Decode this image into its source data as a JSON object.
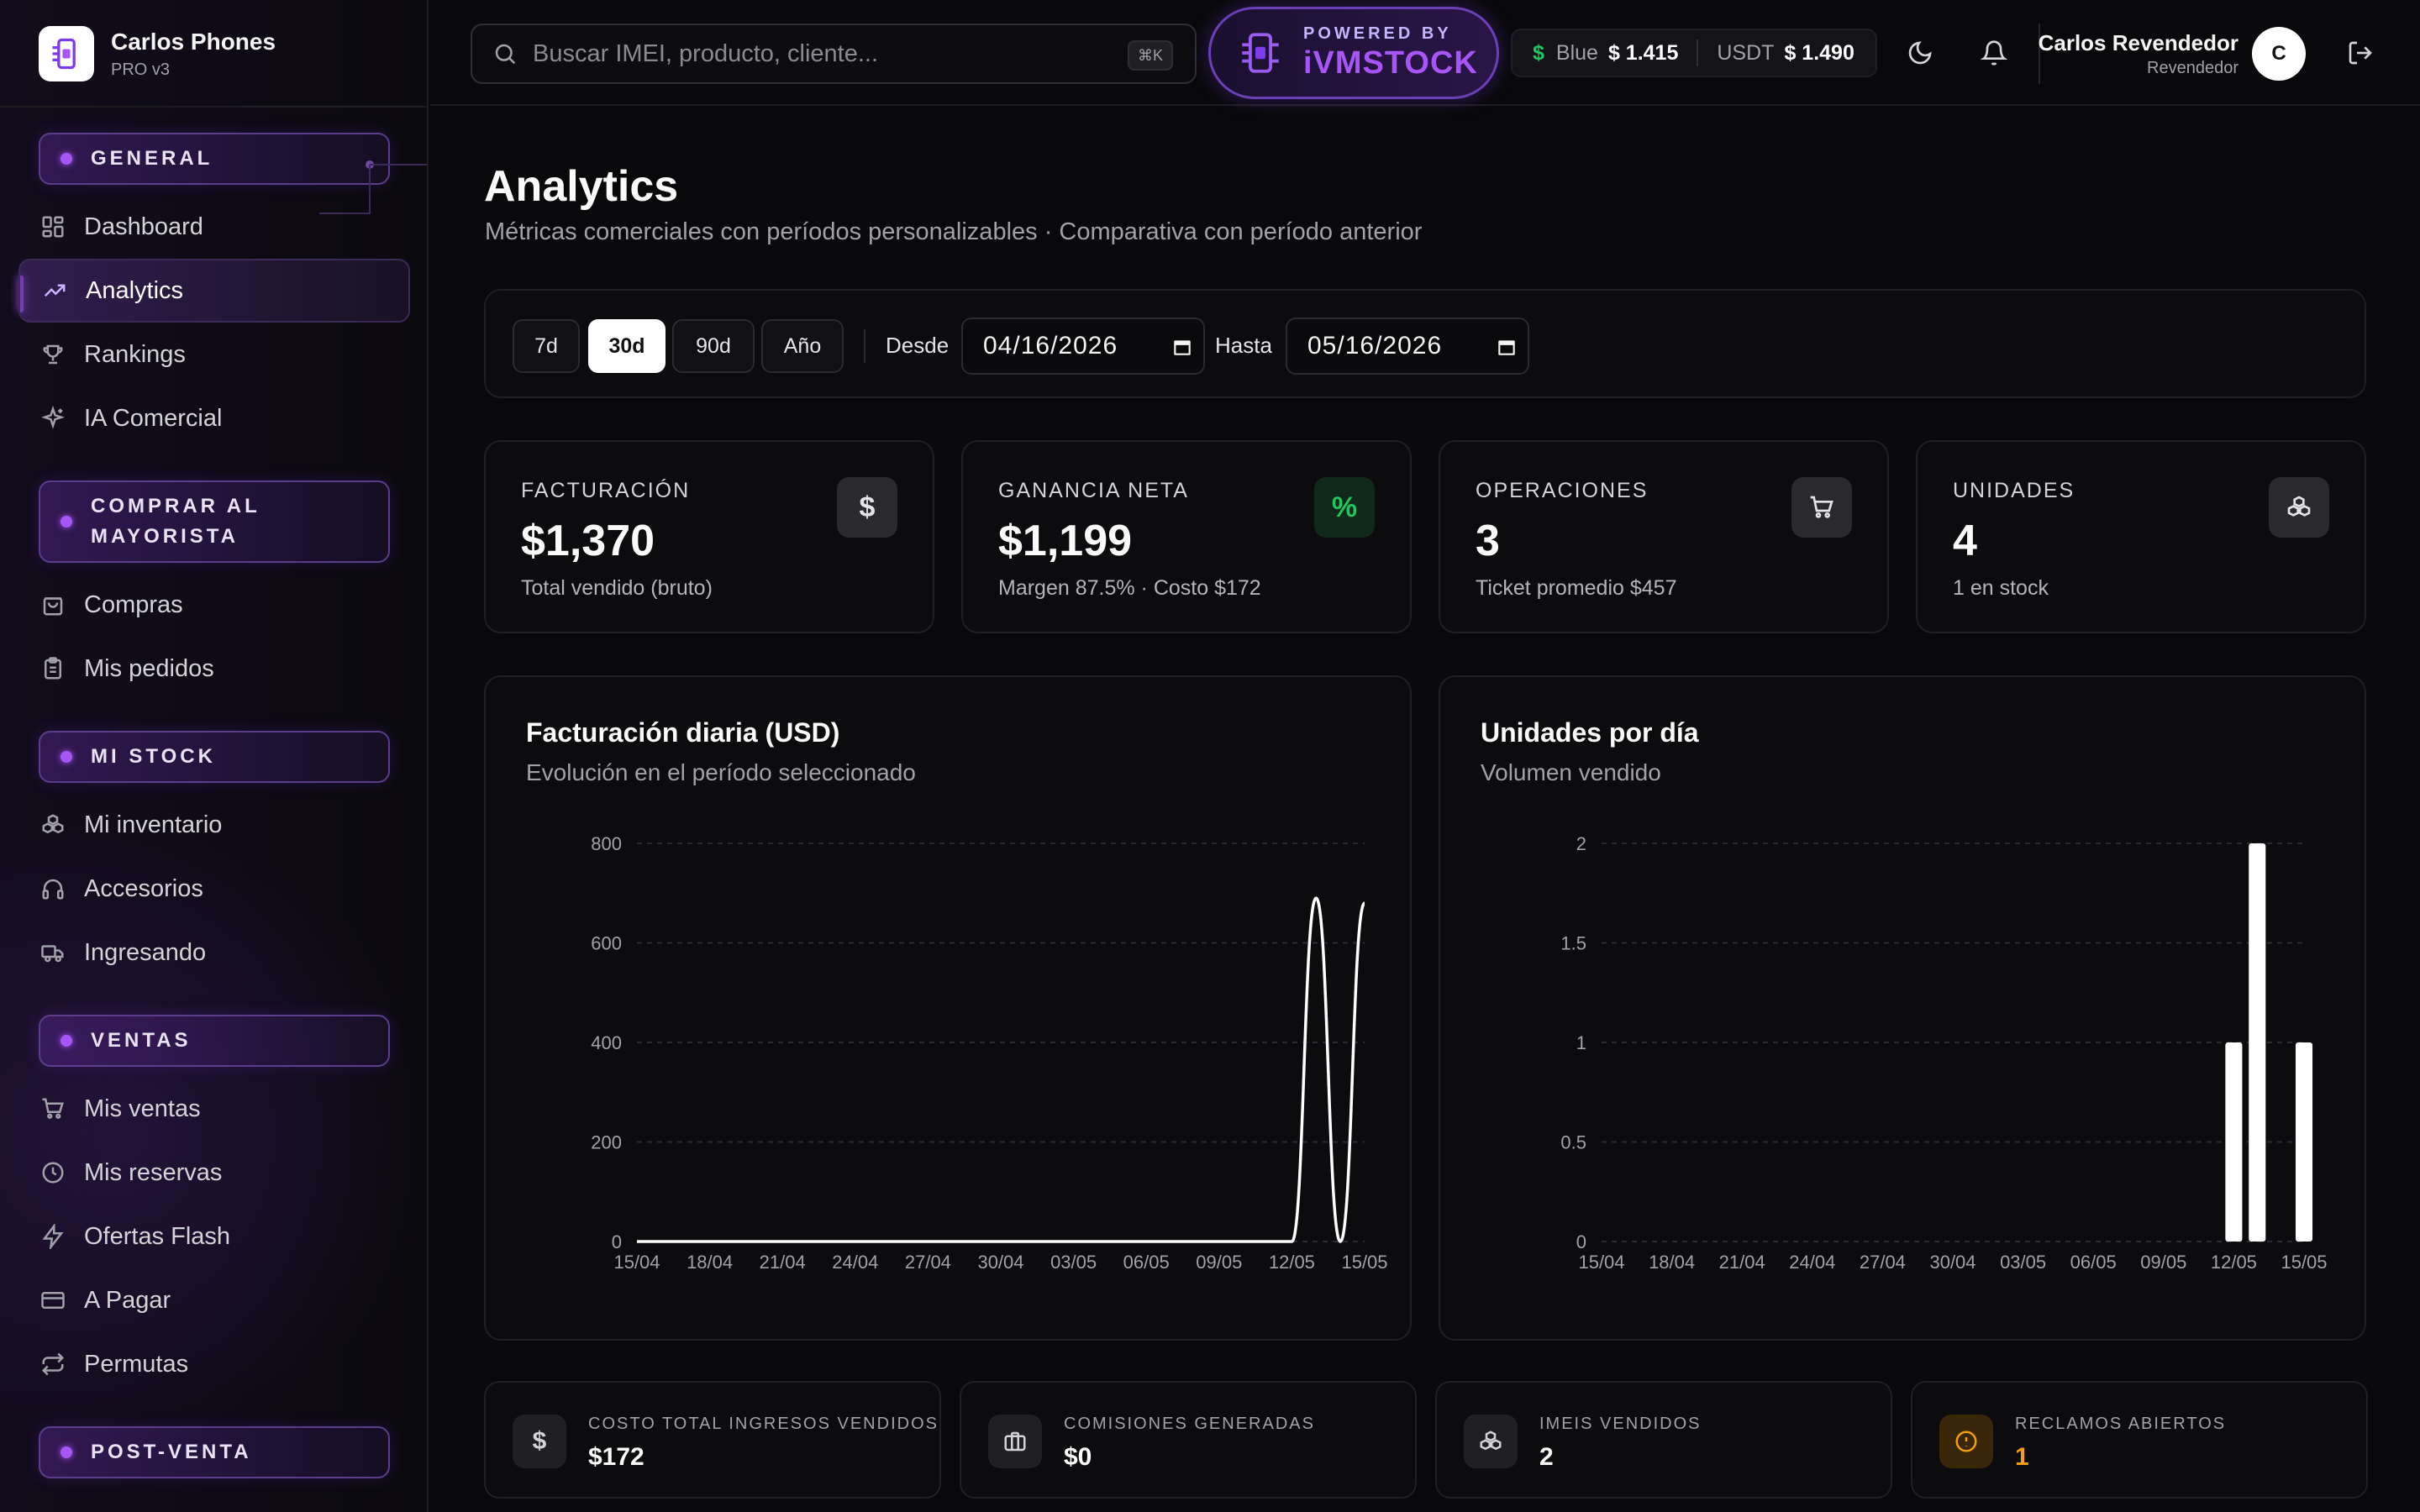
{
  "brand": {
    "name": "Carlos Phones",
    "version": "PRO v3"
  },
  "sidebar": {
    "sections": [
      {
        "label": "GENERAL"
      },
      {
        "label": "COMPRAR AL MAYORISTA"
      },
      {
        "label": "MI STOCK"
      },
      {
        "label": "VENTAS"
      },
      {
        "label": "POST-VENTA"
      }
    ],
    "items": [
      {
        "label": "Dashboard",
        "icon": "grid-icon"
      },
      {
        "label": "Analytics",
        "icon": "trend-up-icon",
        "active": true
      },
      {
        "label": "Rankings",
        "icon": "trophy-icon"
      },
      {
        "label": "IA Comercial",
        "icon": "sparkles-icon"
      },
      {
        "label": "Compras",
        "icon": "shopping-bag-icon"
      },
      {
        "label": "Mis pedidos",
        "icon": "clipboard-icon"
      },
      {
        "label": "Mi inventario",
        "icon": "boxes-icon"
      },
      {
        "label": "Accesorios",
        "icon": "headphones-icon"
      },
      {
        "label": "Ingresando",
        "icon": "truck-icon"
      },
      {
        "label": "Mis ventas",
        "icon": "cart-icon"
      },
      {
        "label": "Mis reservas",
        "icon": "clock-icon"
      },
      {
        "label": "Ofertas Flash",
        "icon": "bolt-icon"
      },
      {
        "label": "A Pagar",
        "icon": "credit-card-icon"
      },
      {
        "label": "Permutas",
        "icon": "swap-icon"
      }
    ]
  },
  "header": {
    "search_placeholder": "Buscar IMEI, producto, cliente...",
    "search_shortcut": "⌘K",
    "powered_by": "POWERED BY",
    "powered_brand": "iVMSTOCK",
    "rates": {
      "symbol": "$",
      "blue_label": "Blue",
      "blue_value": "$ 1.415",
      "usdt_label": "USDT",
      "usdt_value": "$ 1.490"
    },
    "user": {
      "name": "Carlos Revendedor",
      "role": "Revendedor",
      "initial": "C"
    }
  },
  "page": {
    "title": "Analytics",
    "subtitle": "Métricas comerciales con períodos personalizables · Comparativa con período anterior"
  },
  "filters": {
    "periods": [
      "7d",
      "30d",
      "90d",
      "Año"
    ],
    "active_period": "30d",
    "from_label": "Desde",
    "from_value": "04/16/2026",
    "to_label": "Hasta",
    "to_value": "05/16/2026"
  },
  "kpis": [
    {
      "label": "FACTURACIÓN",
      "value": "$1,370",
      "sub": "Total vendido (bruto)",
      "icon_glyph": "$"
    },
    {
      "label": "GANANCIA NETA",
      "value": "$1,199",
      "sub": "Margen 87.5% · Costo $172",
      "icon_glyph": "%"
    },
    {
      "label": "OPERACIONES",
      "value": "3",
      "sub": "Ticket promedio $457",
      "icon_glyph": ""
    },
    {
      "label": "UNIDADES",
      "value": "4",
      "sub": "1 en stock",
      "icon_glyph": ""
    }
  ],
  "charts": {
    "revenue": {
      "title": "Facturación diaria (USD)",
      "subtitle": "Evolución en el período seleccionado"
    },
    "units": {
      "title": "Unidades por día",
      "subtitle": "Volumen vendido"
    }
  },
  "chart_data": [
    {
      "type": "line",
      "title": "Facturación diaria (USD)",
      "x_ticks": [
        "15/04",
        "18/04",
        "21/04",
        "24/04",
        "27/04",
        "30/04",
        "03/05",
        "06/05",
        "09/05",
        "12/05",
        "15/05"
      ],
      "y_ticks": [
        0,
        200,
        400,
        600,
        800
      ],
      "ylim": [
        0,
        800
      ],
      "grid": true,
      "color": "#ffffff",
      "x": [
        "15/04",
        "16/04",
        "17/04",
        "18/04",
        "19/04",
        "20/04",
        "21/04",
        "22/04",
        "23/04",
        "24/04",
        "25/04",
        "26/04",
        "27/04",
        "28/04",
        "29/04",
        "30/04",
        "01/05",
        "02/05",
        "03/05",
        "04/05",
        "05/05",
        "06/05",
        "07/05",
        "08/05",
        "09/05",
        "10/05",
        "11/05",
        "12/05",
        "13/05",
        "14/05",
        "15/05"
      ],
      "values": [
        0,
        0,
        0,
        0,
        0,
        0,
        0,
        0,
        0,
        0,
        0,
        0,
        0,
        0,
        0,
        0,
        0,
        0,
        0,
        0,
        0,
        0,
        0,
        0,
        0,
        0,
        0,
        0,
        690,
        0,
        680
      ]
    },
    {
      "type": "bar",
      "title": "Unidades por día",
      "x_ticks": [
        "15/04",
        "18/04",
        "21/04",
        "24/04",
        "27/04",
        "30/04",
        "03/05",
        "06/05",
        "09/05",
        "12/05",
        "15/05"
      ],
      "y_ticks": [
        0,
        0.5,
        1,
        1.5,
        2
      ],
      "ylim": [
        0,
        2
      ],
      "grid": true,
      "color": "#ffffff",
      "x": [
        "15/04",
        "16/04",
        "17/04",
        "18/04",
        "19/04",
        "20/04",
        "21/04",
        "22/04",
        "23/04",
        "24/04",
        "25/04",
        "26/04",
        "27/04",
        "28/04",
        "29/04",
        "30/04",
        "01/05",
        "02/05",
        "03/05",
        "04/05",
        "05/05",
        "06/05",
        "07/05",
        "08/05",
        "09/05",
        "10/05",
        "11/05",
        "12/05",
        "13/05",
        "14/05",
        "15/05"
      ],
      "values": [
        0,
        0,
        0,
        0,
        0,
        0,
        0,
        0,
        0,
        0,
        0,
        0,
        0,
        0,
        0,
        0,
        0,
        0,
        0,
        0,
        0,
        0,
        0,
        0,
        0,
        0,
        0,
        1,
        2,
        0,
        1
      ]
    }
  ],
  "summary": [
    {
      "label": "COSTO TOTAL INGRESOS VENDIDOS",
      "value": "$172",
      "icon": "dollar-icon"
    },
    {
      "label": "COMISIONES GENERADAS",
      "value": "$0",
      "icon": "briefcase-icon"
    },
    {
      "label": "IMEIS VENDIDOS",
      "value": "2",
      "icon": "boxes-icon"
    },
    {
      "label": "RECLAMOS ABIERTOS",
      "value": "1",
      "icon": "alert-circle-icon",
      "accent": "#f59e0b"
    }
  ]
}
